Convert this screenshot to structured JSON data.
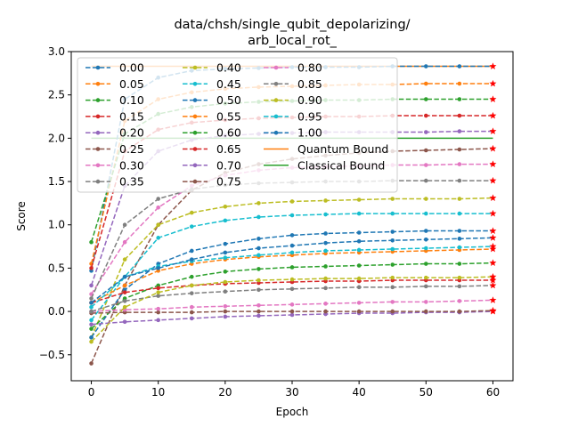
{
  "chart_data": {
    "type": "line",
    "title_lines": [
      "data/chsh/single_qubit_depolarizing/",
      "arb_local_rot_"
    ],
    "xlabel": "Epoch",
    "ylabel": "Score",
    "xlim": [
      -3,
      63
    ],
    "ylim": [
      -0.8,
      3.0
    ],
    "xticks": [
      0,
      10,
      20,
      30,
      40,
      50,
      60
    ],
    "yticks": [
      -0.5,
      0.0,
      0.5,
      1.0,
      1.5,
      2.0,
      2.5,
      3.0
    ],
    "ytick_labels": [
      "−0.5",
      "0.0",
      "0.5",
      "1.0",
      "1.5",
      "2.0",
      "2.5",
      "3.0"
    ],
    "legend_position": "upper-left, 3 columns",
    "x": [
      0,
      5,
      10,
      15,
      20,
      25,
      30,
      35,
      40,
      45,
      50,
      55,
      60
    ],
    "series": [
      {
        "name": "0.00",
        "color": "#1f77b4",
        "values": [
          0.47,
          2.45,
          2.7,
          2.78,
          2.8,
          2.81,
          2.82,
          2.82,
          2.82,
          2.83,
          2.83,
          2.83,
          2.83
        ]
      },
      {
        "name": "0.05",
        "color": "#ff7f0e",
        "values": [
          0.55,
          2.2,
          2.45,
          2.53,
          2.57,
          2.59,
          2.6,
          2.61,
          2.62,
          2.62,
          2.63,
          2.63,
          2.63
        ]
      },
      {
        "name": "0.10",
        "color": "#2ca02c",
        "values": [
          0.8,
          2.05,
          2.28,
          2.36,
          2.4,
          2.42,
          2.43,
          2.44,
          2.44,
          2.45,
          2.45,
          2.45,
          2.45
        ]
      },
      {
        "name": "0.15",
        "color": "#d62728",
        "values": [
          0.5,
          1.85,
          2.1,
          2.18,
          2.21,
          2.23,
          2.24,
          2.25,
          2.25,
          2.26,
          2.26,
          2.26,
          2.26
        ]
      },
      {
        "name": "0.20",
        "color": "#9467bd",
        "values": [
          0.3,
          1.45,
          1.85,
          1.98,
          2.03,
          2.05,
          2.06,
          2.07,
          2.07,
          2.07,
          2.07,
          2.08,
          2.08
        ]
      },
      {
        "name": "0.25",
        "color": "#8c564b",
        "values": [
          -0.6,
          0.3,
          1.0,
          1.4,
          1.6,
          1.7,
          1.76,
          1.8,
          1.83,
          1.85,
          1.86,
          1.87,
          1.88
        ]
      },
      {
        "name": "0.30",
        "color": "#e377c2",
        "values": [
          0.2,
          0.8,
          1.2,
          1.45,
          1.57,
          1.63,
          1.66,
          1.67,
          1.68,
          1.69,
          1.69,
          1.7,
          1.7
        ]
      },
      {
        "name": "0.35",
        "color": "#7f7f7f",
        "values": [
          0.15,
          1.0,
          1.3,
          1.41,
          1.46,
          1.48,
          1.49,
          1.5,
          1.5,
          1.51,
          1.51,
          1.51,
          1.51
        ]
      },
      {
        "name": "0.40",
        "color": "#bcbd22",
        "values": [
          -0.3,
          0.6,
          1.0,
          1.14,
          1.21,
          1.25,
          1.27,
          1.28,
          1.29,
          1.3,
          1.3,
          1.3,
          1.31
        ]
      },
      {
        "name": "0.45",
        "color": "#17becf",
        "values": [
          -0.1,
          0.4,
          0.85,
          0.98,
          1.05,
          1.09,
          1.11,
          1.12,
          1.13,
          1.13,
          1.13,
          1.13,
          1.13
        ]
      },
      {
        "name": "0.50",
        "color": "#1f77b4",
        "values": [
          -0.3,
          0.25,
          0.55,
          0.7,
          0.78,
          0.84,
          0.88,
          0.9,
          0.91,
          0.92,
          0.93,
          0.93,
          0.93
        ]
      },
      {
        "name": "0.55",
        "color": "#ff7f0e",
        "values": [
          0.1,
          0.3,
          0.47,
          0.55,
          0.6,
          0.63,
          0.65,
          0.67,
          0.68,
          0.69,
          0.7,
          0.71,
          0.72
        ]
      },
      {
        "name": "0.60",
        "color": "#2ca02c",
        "values": [
          -0.2,
          0.15,
          0.3,
          0.4,
          0.46,
          0.49,
          0.51,
          0.52,
          0.53,
          0.54,
          0.55,
          0.55,
          0.56
        ]
      },
      {
        "name": "0.65",
        "color": "#d62728",
        "values": [
          0.1,
          0.22,
          0.27,
          0.3,
          0.32,
          0.33,
          0.34,
          0.35,
          0.35,
          0.36,
          0.36,
          0.36,
          0.36
        ]
      },
      {
        "name": "0.70",
        "color": "#9467bd",
        "values": [
          -0.15,
          -0.12,
          -0.1,
          -0.08,
          -0.06,
          -0.05,
          -0.04,
          -0.03,
          -0.02,
          -0.02,
          -0.01,
          -0.01,
          0.0
        ]
      },
      {
        "name": "0.75",
        "color": "#8c564b",
        "values": [
          -0.02,
          -0.01,
          -0.01,
          -0.01,
          0.0,
          0.0,
          0.0,
          0.0,
          0.0,
          0.0,
          0.0,
          0.0,
          0.01
        ]
      },
      {
        "name": "0.80",
        "color": "#e377c2",
        "values": [
          0.0,
          0.02,
          0.03,
          0.05,
          0.06,
          0.07,
          0.08,
          0.09,
          0.1,
          0.11,
          0.11,
          0.12,
          0.13
        ]
      },
      {
        "name": "0.85",
        "color": "#7f7f7f",
        "values": [
          0.0,
          0.12,
          0.18,
          0.21,
          0.23,
          0.25,
          0.26,
          0.27,
          0.28,
          0.28,
          0.29,
          0.29,
          0.3
        ]
      },
      {
        "name": "0.90",
        "color": "#bcbd22",
        "values": [
          -0.35,
          0.05,
          0.22,
          0.3,
          0.34,
          0.36,
          0.37,
          0.38,
          0.38,
          0.39,
          0.39,
          0.39,
          0.4
        ]
      },
      {
        "name": "0.95",
        "color": "#17becf",
        "values": [
          0.05,
          0.4,
          0.52,
          0.58,
          0.62,
          0.65,
          0.68,
          0.7,
          0.71,
          0.72,
          0.73,
          0.74,
          0.75
        ]
      },
      {
        "name": "1.00",
        "color": "#1f77b4",
        "values": [
          0.1,
          0.4,
          0.5,
          0.6,
          0.68,
          0.73,
          0.76,
          0.79,
          0.81,
          0.82,
          0.83,
          0.84,
          0.85
        ]
      }
    ],
    "bounds": [
      {
        "name": "Quantum Bound",
        "color": "#ff7f0e",
        "value": 2.83
      },
      {
        "name": "Classical Bound",
        "color": "#2ca02c",
        "value": 2.0
      }
    ],
    "final_marker_color": "#ff0000"
  }
}
